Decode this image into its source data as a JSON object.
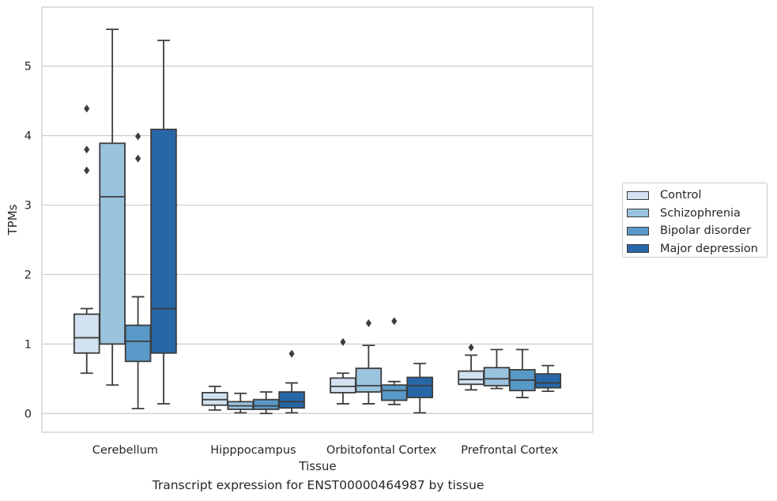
{
  "chart_data": {
    "type": "box",
    "title": "",
    "caption": "Transcript expression for ENST00000464987 by tissue",
    "xlabel": "Tissue",
    "ylabel": "TPMs",
    "ylim": [
      -0.27,
      5.85
    ],
    "yticks": [
      0,
      1,
      2,
      3,
      4,
      5
    ],
    "grid": "horizontal",
    "legend_position": "right",
    "categories": [
      "Cerebellum",
      "Hipppocampus",
      "Orbitofontal Cortex",
      "Prefrontal Cortex"
    ],
    "series": [
      {
        "name": "Control",
        "color": "#d2e2f1",
        "boxes": [
          {
            "whislo": 0.58,
            "q1": 0.87,
            "med": 1.09,
            "q3": 1.43,
            "whishi": 1.51,
            "fliers": [
              4.39,
              3.8,
              3.5
            ]
          },
          {
            "whislo": 0.05,
            "q1": 0.12,
            "med": 0.2,
            "q3": 0.3,
            "whishi": 0.39,
            "fliers": []
          },
          {
            "whislo": 0.14,
            "q1": 0.3,
            "med": 0.39,
            "q3": 0.51,
            "whishi": 0.58,
            "fliers": [
              1.03
            ]
          },
          {
            "whislo": 0.34,
            "q1": 0.42,
            "med": 0.49,
            "q3": 0.61,
            "whishi": 0.84,
            "fliers": [
              0.95
            ]
          }
        ]
      },
      {
        "name": "Schizophrenia",
        "color": "#9ac3de",
        "boxes": [
          {
            "whislo": 0.41,
            "q1": 1.0,
            "med": 3.12,
            "q3": 3.89,
            "whishi": 5.53,
            "fliers": []
          },
          {
            "whislo": 0.01,
            "q1": 0.06,
            "med": 0.11,
            "q3": 0.17,
            "whishi": 0.29,
            "fliers": []
          },
          {
            "whislo": 0.14,
            "q1": 0.31,
            "med": 0.4,
            "q3": 0.65,
            "whishi": 0.98,
            "fliers": [
              1.3
            ]
          },
          {
            "whislo": 0.36,
            "q1": 0.4,
            "med": 0.5,
            "q3": 0.66,
            "whishi": 0.92,
            "fliers": []
          }
        ]
      },
      {
        "name": "Bipolar disorder",
        "color": "#5999c7",
        "boxes": [
          {
            "whislo": 0.07,
            "q1": 0.75,
            "med": 1.04,
            "q3": 1.27,
            "whishi": 1.68,
            "fliers": [
              3.99,
              3.67
            ]
          },
          {
            "whislo": 0.0,
            "q1": 0.06,
            "med": 0.11,
            "q3": 0.2,
            "whishi": 0.31,
            "fliers": []
          },
          {
            "whislo": 0.13,
            "q1": 0.19,
            "med": 0.33,
            "q3": 0.41,
            "whishi": 0.46,
            "fliers": [
              1.33
            ]
          },
          {
            "whislo": 0.23,
            "q1": 0.33,
            "med": 0.48,
            "q3": 0.63,
            "whishi": 0.92,
            "fliers": []
          }
        ]
      },
      {
        "name": "Major depression",
        "color": "#2767a8",
        "boxes": [
          {
            "whislo": 0.14,
            "q1": 0.87,
            "med": 1.51,
            "q3": 4.09,
            "whishi": 5.37,
            "fliers": []
          },
          {
            "whislo": 0.01,
            "q1": 0.08,
            "med": 0.17,
            "q3": 0.31,
            "whishi": 0.44,
            "fliers": [
              0.86
            ]
          },
          {
            "whislo": 0.01,
            "q1": 0.23,
            "med": 0.4,
            "q3": 0.52,
            "whishi": 0.72,
            "fliers": []
          },
          {
            "whislo": 0.32,
            "q1": 0.37,
            "med": 0.44,
            "q3": 0.57,
            "whishi": 0.69,
            "fliers": []
          }
        ]
      }
    ]
  }
}
